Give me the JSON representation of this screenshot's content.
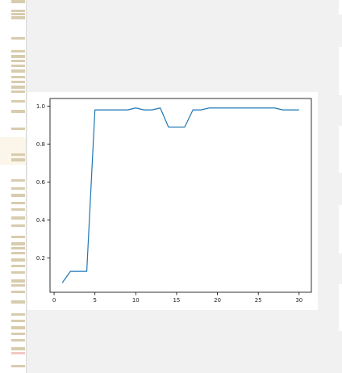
{
  "chart_data": {
    "type": "line",
    "title": "",
    "xlabel": "",
    "ylabel": "",
    "xlim": [
      -0.5,
      31.5
    ],
    "ylim": [
      0.02,
      1.04
    ],
    "x_ticks": [
      0,
      5,
      10,
      15,
      20,
      25,
      30
    ],
    "y_ticks": [
      0.2,
      0.4,
      0.6,
      0.8,
      1.0
    ],
    "y_tick_labels": [
      "0.2",
      "0.4",
      "0.6",
      "0.8",
      "1.0"
    ],
    "grid": false,
    "series": [
      {
        "color": "#1f77b4",
        "x": [
          1,
          2,
          3,
          4,
          5,
          6,
          7,
          8,
          9,
          10,
          11,
          12,
          13,
          14,
          15,
          16,
          17,
          18,
          19,
          20,
          21,
          22,
          23,
          24,
          25,
          26,
          27,
          28,
          29,
          30
        ],
        "values": [
          0.07,
          0.13,
          0.13,
          0.13,
          0.98,
          0.98,
          0.98,
          0.98,
          0.98,
          0.99,
          0.98,
          0.98,
          0.99,
          0.89,
          0.89,
          0.89,
          0.98,
          0.98,
          0.99,
          0.99,
          0.99,
          0.99,
          0.99,
          0.99,
          0.99,
          0.99,
          0.99,
          0.98,
          0.98,
          0.98
        ]
      }
    ]
  }
}
